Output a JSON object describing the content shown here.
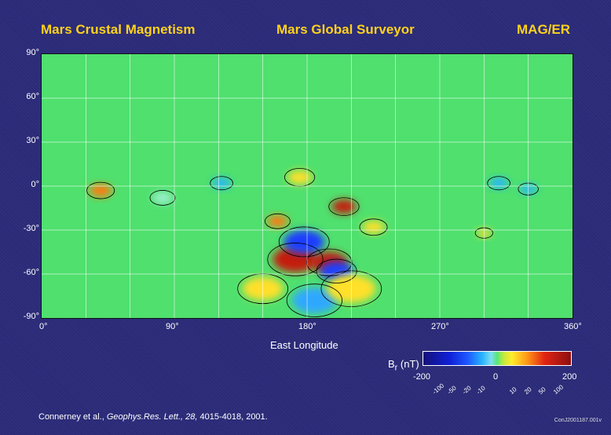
{
  "header": {
    "left": "Mars Crustal Magnetism",
    "center": "Mars Global Surveyor",
    "right": "MAG/ER"
  },
  "axes": {
    "lat_ticks": [
      "90°",
      "60°",
      "30°",
      "0°",
      "-30°",
      "-60°",
      "-90°"
    ],
    "lon_ticks": [
      "0°",
      "90°",
      "180°",
      "270°",
      "360°"
    ],
    "xlabel": "East Longitude",
    "lon_range": [
      0,
      360
    ],
    "lat_range": [
      -90,
      90
    ]
  },
  "colorbar": {
    "label": "B",
    "label_sub": "r",
    "label_unit": " (nT)",
    "major_ticks": [
      "-200",
      "0",
      "200"
    ],
    "minor_ticks": [
      "-100",
      "-50",
      "-20",
      "-10",
      "10",
      "20",
      "50",
      "100"
    ],
    "colors": [
      "#14117a",
      "#1020d8",
      "#28b4ff",
      "#54e77a",
      "#ffec2a",
      "#ff9a18",
      "#e02513",
      "#8c0f10"
    ]
  },
  "credit": {
    "authors": "Connerney et al., ",
    "journal": "Geophys.Res. Lett., 28,",
    "pages": " 4015-4018, 2001."
  },
  "code": "ConJ2001187.001v",
  "anomalies": [
    {
      "lon": 172,
      "lat": -50,
      "r": 22,
      "color": "#c41a10"
    },
    {
      "lon": 195,
      "lat": -52,
      "r": 18,
      "color": "#c41a10"
    },
    {
      "lon": 178,
      "lat": -38,
      "r": 20,
      "color": "#1e3cff"
    },
    {
      "lon": 200,
      "lat": -58,
      "r": 16,
      "color": "#1e3cff"
    },
    {
      "lon": 185,
      "lat": -78,
      "r": 22,
      "color": "#2fa8ff"
    },
    {
      "lon": 205,
      "lat": -14,
      "r": 12,
      "color": "#c41a10"
    },
    {
      "lon": 160,
      "lat": -24,
      "r": 10,
      "color": "#ff7a10"
    },
    {
      "lon": 40,
      "lat": -3,
      "r": 11,
      "color": "#ff7a10"
    },
    {
      "lon": 150,
      "lat": -70,
      "r": 20,
      "color": "#ffe02a"
    },
    {
      "lon": 210,
      "lat": -70,
      "r": 24,
      "color": "#ffe02a"
    },
    {
      "lon": 330,
      "lat": -2,
      "r": 8,
      "color": "#28b4ff"
    },
    {
      "lon": 310,
      "lat": 2,
      "r": 9,
      "color": "#28b4ff"
    },
    {
      "lon": 300,
      "lat": -32,
      "r": 7,
      "color": "#ffe02a"
    },
    {
      "lon": 122,
      "lat": 2,
      "r": 9,
      "color": "#28b4ff"
    },
    {
      "lon": 175,
      "lat": 6,
      "r": 12,
      "color": "#ffe02a"
    },
    {
      "lon": 225,
      "lat": -28,
      "r": 11,
      "color": "#ffe02a"
    },
    {
      "lon": 82,
      "lat": -8,
      "r": 10,
      "color": "#9ff0d0"
    }
  ]
}
